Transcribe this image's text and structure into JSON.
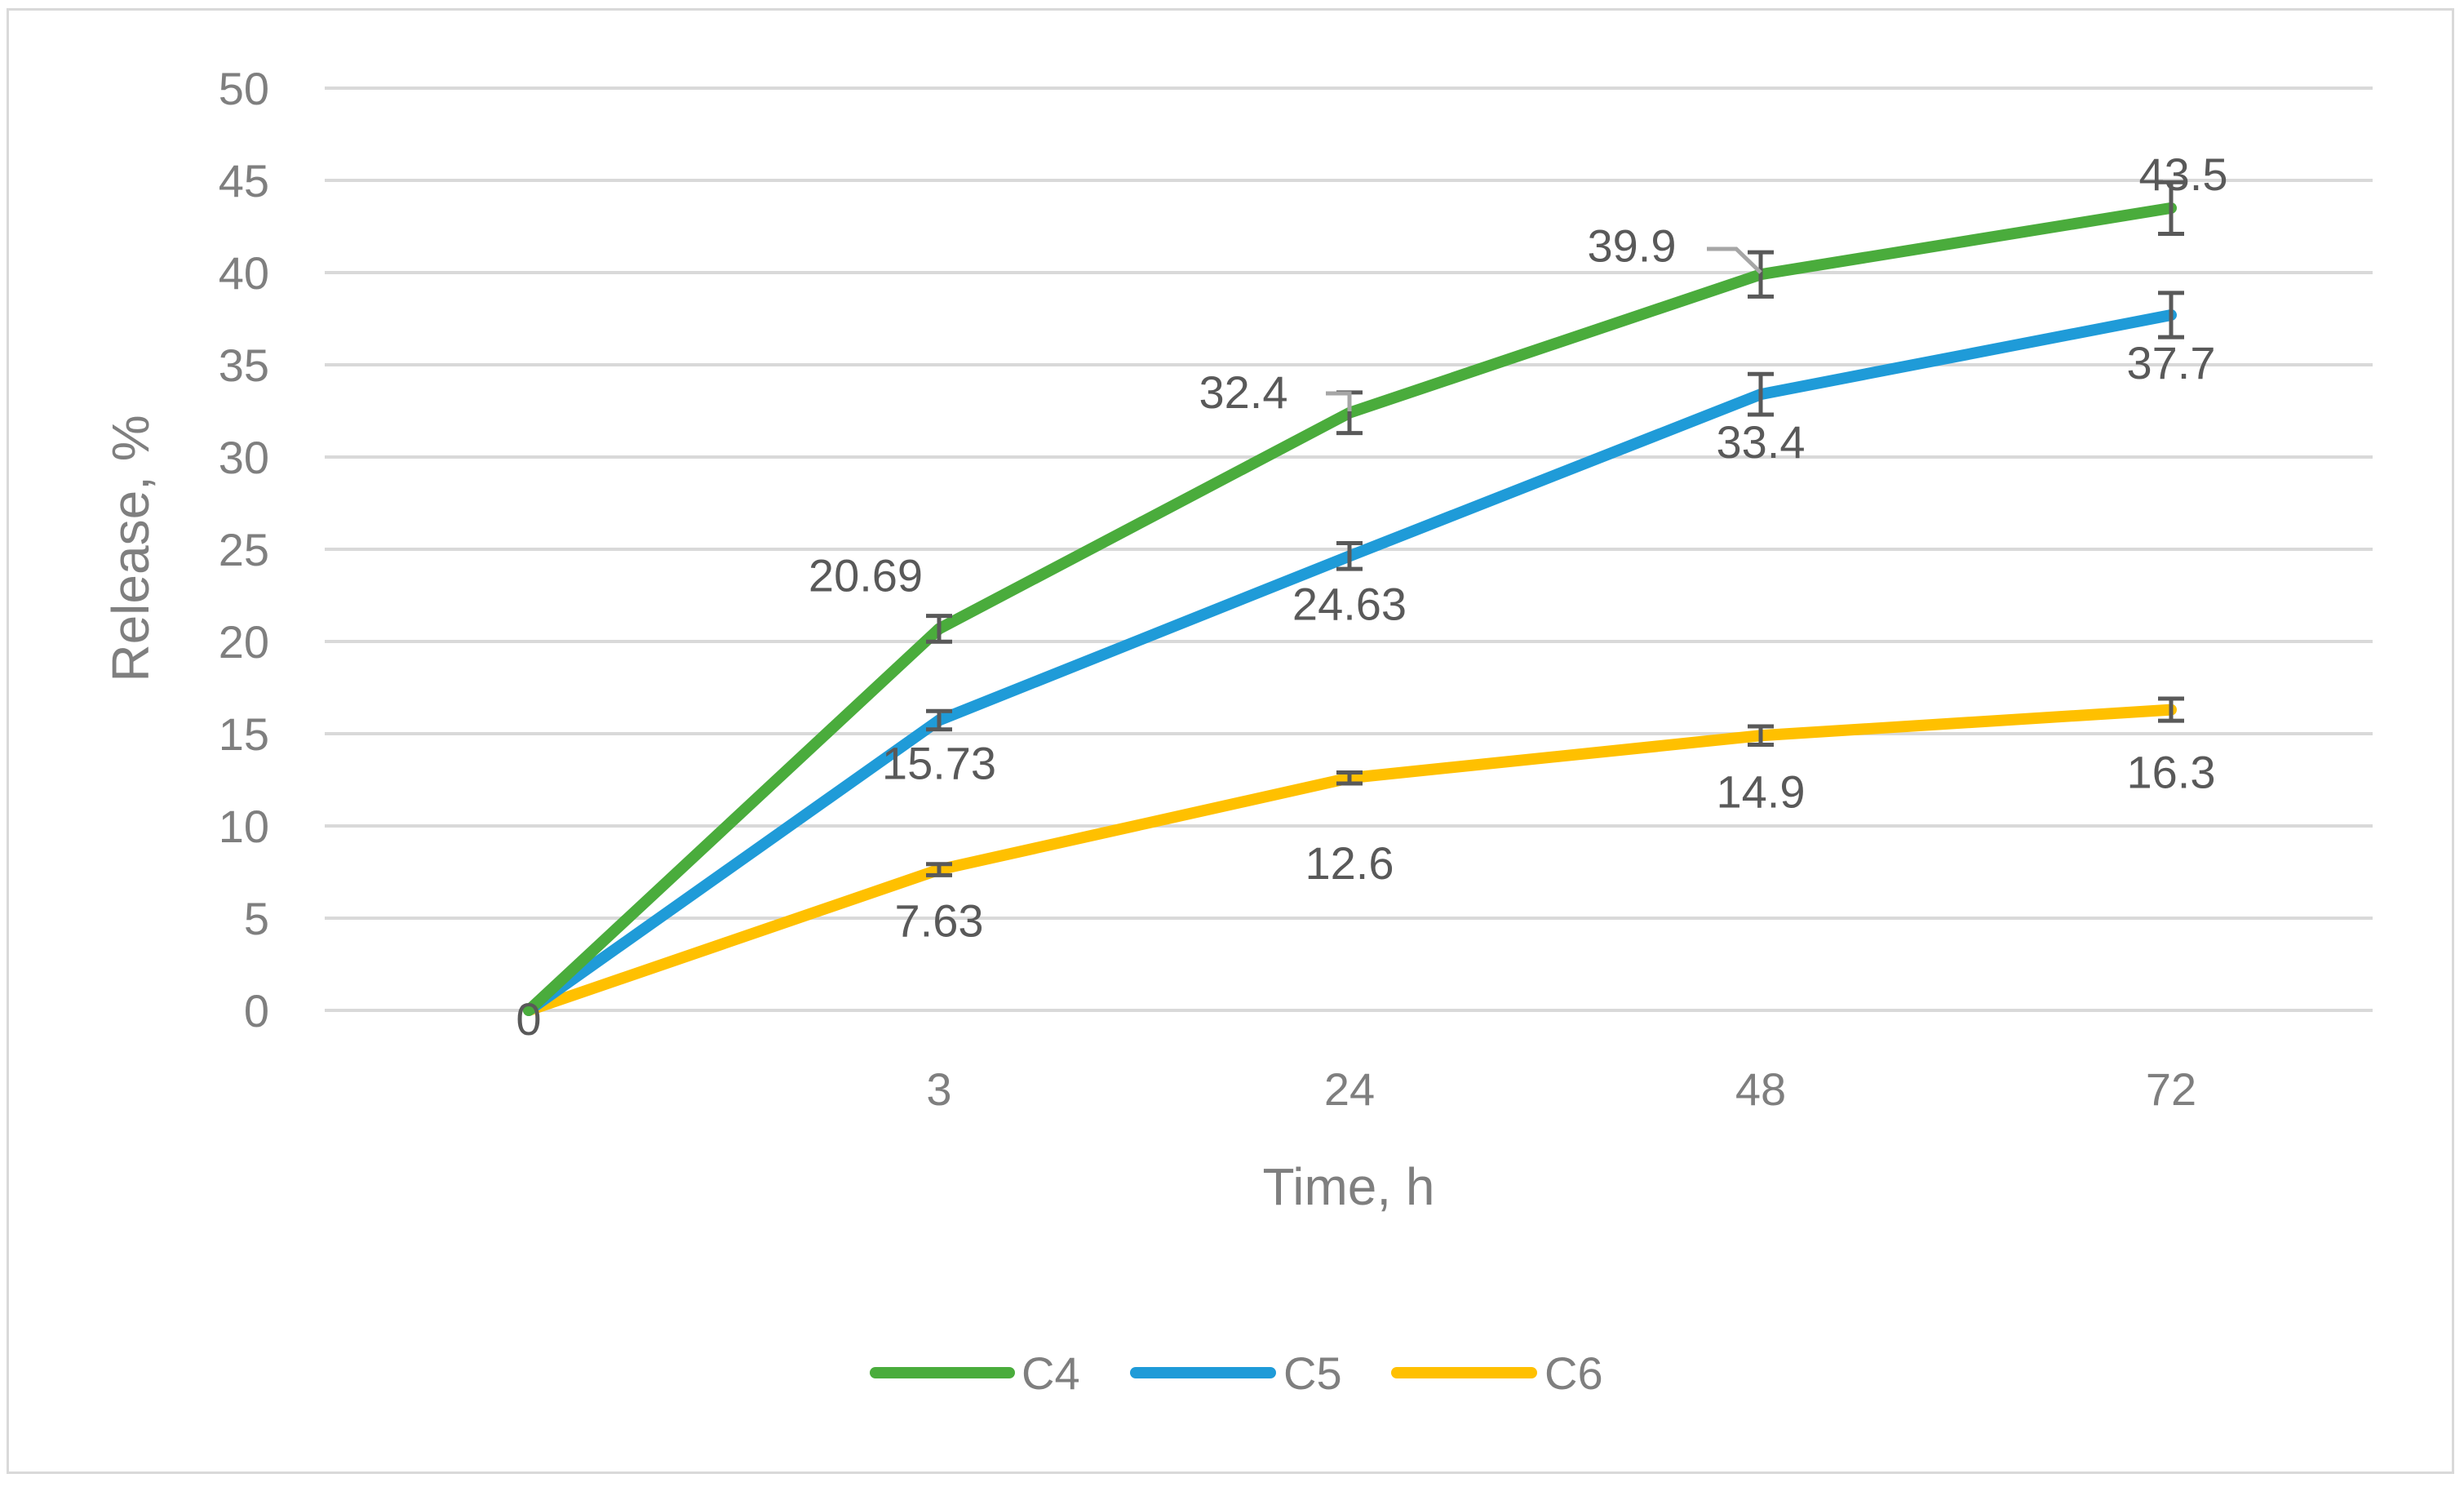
{
  "chart_data": {
    "type": "line",
    "xlabel": "Time, h",
    "ylabel": "Release, %",
    "categories": [
      "0",
      "3",
      "24",
      "48",
      "72"
    ],
    "category_tick_labels": [
      "",
      "3",
      "24",
      "48",
      "72"
    ],
    "ylim": [
      0,
      50
    ],
    "y_ticks": [
      0,
      5,
      10,
      15,
      20,
      25,
      30,
      35,
      40,
      45,
      50
    ],
    "grid": true,
    "legend_position": "bottom",
    "series": [
      {
        "name": "C4",
        "color": "#4aac3c",
        "values": [
          0,
          20.69,
          32.4,
          39.9,
          43.5
        ],
        "data_labels": [
          "0",
          "20.69",
          "32.4",
          "39.9",
          "43.5"
        ],
        "error": [
          0,
          0.7,
          1.1,
          1.2,
          1.4
        ]
      },
      {
        "name": "C5",
        "color": "#1f9bd8",
        "values": [
          0,
          15.73,
          24.63,
          33.4,
          37.7
        ],
        "data_labels": [
          "",
          "15.73",
          "24.63",
          "33.4",
          "37.7"
        ],
        "error": [
          0,
          0.5,
          0.7,
          1.1,
          1.2
        ]
      },
      {
        "name": "C6",
        "color": "#ffc000",
        "values": [
          0,
          7.63,
          12.6,
          14.9,
          16.3
        ],
        "data_labels": [
          "",
          "7.63",
          "12.6",
          "14.9",
          "16.3"
        ],
        "error": [
          0,
          0.3,
          0.3,
          0.5,
          0.6
        ]
      }
    ]
  }
}
